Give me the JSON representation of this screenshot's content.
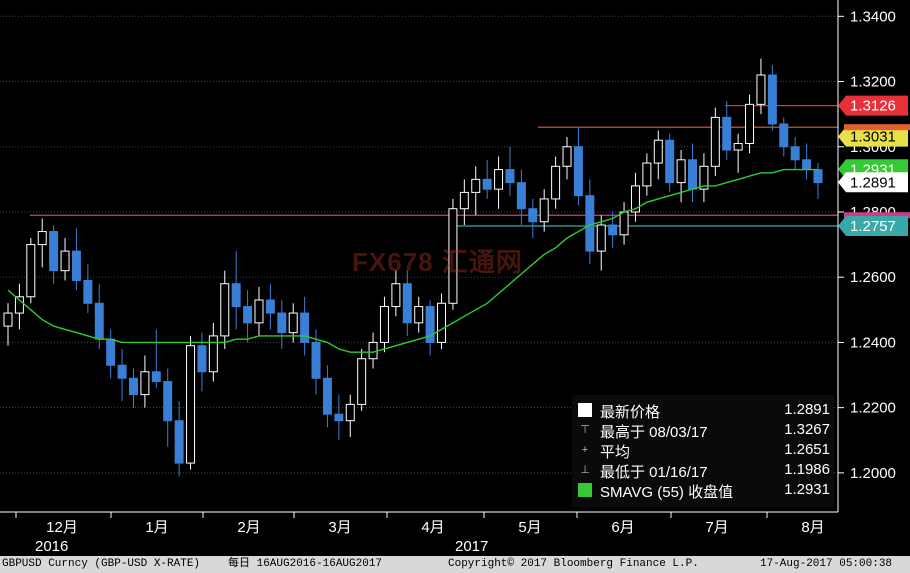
{
  "chart_data": {
    "type": "candlestick",
    "title": "",
    "ylim": [
      1.188,
      1.345
    ],
    "y_ticks": [
      "1.3400",
      "1.3200",
      "1.3000",
      "1.2800",
      "1.2600",
      "1.2400",
      "1.2200",
      "1.2000"
    ],
    "x_months": [
      "12月",
      "1月",
      "2月",
      "3月",
      "4月",
      "5月",
      "6月",
      "7月",
      "8月"
    ],
    "x_years": [
      "2016",
      "2017"
    ],
    "candles": [
      [
        1.245,
        1.252,
        1.239,
        1.249
      ],
      [
        1.249,
        1.258,
        1.244,
        1.254
      ],
      [
        1.254,
        1.272,
        1.252,
        1.27
      ],
      [
        1.27,
        1.278,
        1.263,
        1.274
      ],
      [
        1.274,
        1.276,
        1.258,
        1.262
      ],
      [
        1.262,
        1.272,
        1.259,
        1.268
      ],
      [
        1.268,
        1.275,
        1.256,
        1.259
      ],
      [
        1.259,
        1.264,
        1.249,
        1.252
      ],
      [
        1.252,
        1.258,
        1.238,
        1.241
      ],
      [
        1.241,
        1.244,
        1.229,
        1.233
      ],
      [
        1.233,
        1.238,
        1.222,
        1.229
      ],
      [
        1.229,
        1.232,
        1.22,
        1.224
      ],
      [
        1.224,
        1.236,
        1.22,
        1.231
      ],
      [
        1.231,
        1.244,
        1.226,
        1.228
      ],
      [
        1.228,
        1.232,
        1.208,
        1.216
      ],
      [
        1.216,
        1.222,
        1.199,
        1.203
      ],
      [
        1.203,
        1.242,
        1.201,
        1.239
      ],
      [
        1.239,
        1.243,
        1.225,
        1.231
      ],
      [
        1.231,
        1.246,
        1.228,
        1.242
      ],
      [
        1.242,
        1.262,
        1.238,
        1.258
      ],
      [
        1.258,
        1.268,
        1.244,
        1.251
      ],
      [
        1.251,
        1.256,
        1.24,
        1.246
      ],
      [
        1.246,
        1.257,
        1.242,
        1.253
      ],
      [
        1.253,
        1.258,
        1.244,
        1.249
      ],
      [
        1.249,
        1.253,
        1.238,
        1.243
      ],
      [
        1.243,
        1.252,
        1.24,
        1.249
      ],
      [
        1.249,
        1.254,
        1.236,
        1.24
      ],
      [
        1.24,
        1.244,
        1.224,
        1.229
      ],
      [
        1.229,
        1.233,
        1.214,
        1.218
      ],
      [
        1.218,
        1.224,
        1.21,
        1.216
      ],
      [
        1.216,
        1.224,
        1.211,
        1.221
      ],
      [
        1.221,
        1.238,
        1.219,
        1.235
      ],
      [
        1.235,
        1.243,
        1.232,
        1.24
      ],
      [
        1.24,
        1.254,
        1.237,
        1.251
      ],
      [
        1.251,
        1.262,
        1.248,
        1.258
      ],
      [
        1.258,
        1.262,
        1.242,
        1.246
      ],
      [
        1.246,
        1.254,
        1.243,
        1.251
      ],
      [
        1.251,
        1.253,
        1.236,
        1.24
      ],
      [
        1.24,
        1.255,
        1.238,
        1.252
      ],
      [
        1.252,
        1.284,
        1.25,
        1.281
      ],
      [
        1.281,
        1.29,
        1.276,
        1.286
      ],
      [
        1.286,
        1.294,
        1.279,
        1.29
      ],
      [
        1.29,
        1.296,
        1.284,
        1.287
      ],
      [
        1.287,
        1.297,
        1.281,
        1.293
      ],
      [
        1.293,
        1.3,
        1.285,
        1.289
      ],
      [
        1.289,
        1.293,
        1.276,
        1.281
      ],
      [
        1.281,
        1.284,
        1.272,
        1.277
      ],
      [
        1.277,
        1.287,
        1.274,
        1.284
      ],
      [
        1.284,
        1.297,
        1.281,
        1.294
      ],
      [
        1.294,
        1.303,
        1.29,
        1.3
      ],
      [
        1.3,
        1.306,
        1.282,
        1.285
      ],
      [
        1.285,
        1.29,
        1.264,
        1.268
      ],
      [
        1.268,
        1.279,
        1.262,
        1.276
      ],
      [
        1.276,
        1.28,
        1.269,
        1.273
      ],
      [
        1.273,
        1.283,
        1.27,
        1.28
      ],
      [
        1.28,
        1.292,
        1.277,
        1.288
      ],
      [
        1.288,
        1.298,
        1.285,
        1.295
      ],
      [
        1.295,
        1.305,
        1.29,
        1.302
      ],
      [
        1.302,
        1.304,
        1.286,
        1.289
      ],
      [
        1.289,
        1.299,
        1.283,
        1.296
      ],
      [
        1.296,
        1.301,
        1.283,
        1.287
      ],
      [
        1.287,
        1.298,
        1.283,
        1.294
      ],
      [
        1.294,
        1.312,
        1.291,
        1.309
      ],
      [
        1.309,
        1.314,
        1.296,
        1.299
      ],
      [
        1.299,
        1.304,
        1.292,
        1.301
      ],
      [
        1.301,
        1.316,
        1.298,
        1.313
      ],
      [
        1.313,
        1.327,
        1.31,
        1.322
      ],
      [
        1.322,
        1.325,
        1.305,
        1.307
      ],
      [
        1.307,
        1.309,
        1.297,
        1.3
      ],
      [
        1.3,
        1.303,
        1.293,
        1.296
      ],
      [
        1.296,
        1.301,
        1.29,
        1.293
      ],
      [
        1.293,
        1.295,
        1.284,
        1.289
      ]
    ],
    "moving_average": {
      "name": "SMAVG (55) 收盘值",
      "values": [
        1.256,
        1.253,
        1.25,
        1.247,
        1.245,
        1.244,
        1.243,
        1.242,
        1.241,
        1.241,
        1.24,
        1.24,
        1.24,
        1.24,
        1.24,
        1.24,
        1.24,
        1.24,
        1.24,
        1.24,
        1.241,
        1.241,
        1.242,
        1.242,
        1.242,
        1.242,
        1.242,
        1.241,
        1.24,
        1.238,
        1.237,
        1.237,
        1.237,
        1.238,
        1.239,
        1.24,
        1.241,
        1.242,
        1.244,
        1.246,
        1.248,
        1.25,
        1.252,
        1.255,
        1.258,
        1.261,
        1.264,
        1.267,
        1.269,
        1.272,
        1.274,
        1.276,
        1.277,
        1.278,
        1.28,
        1.281,
        1.283,
        1.284,
        1.285,
        1.286,
        1.287,
        1.288,
        1.288,
        1.289,
        1.29,
        1.291,
        1.292,
        1.292,
        1.293,
        1.293,
        1.293,
        1.293
      ],
      "color": "#2ecc2e"
    },
    "horizontal_lines": [
      {
        "value": 1.3126,
        "color": "#e8303a",
        "label": "1.3126"
      },
      {
        "value": 1.3031,
        "color": "#e8e04a",
        "label": "1.3031"
      },
      {
        "value": 1.306,
        "color": "#e06030",
        "label": ""
      },
      {
        "value": 1.2931,
        "color": "#35c935",
        "label": "1.2931"
      },
      {
        "value": 1.2891,
        "color": "#ffffff",
        "label": "1.2891"
      },
      {
        "value": 1.279,
        "color": "#d23a8c",
        "label": ""
      },
      {
        "value": 1.2757,
        "color": "#3aa8a8",
        "label": "1.2757"
      }
    ],
    "grid": true,
    "colors": {
      "up": "#ffffff",
      "down": "#3a7fd6",
      "grid": "#444444",
      "axis": "#ffffff"
    }
  },
  "legend": {
    "last_price_label": "最新价格",
    "last_price_value": "1.2891",
    "high_label": "最高于 08/03/17",
    "high_value": "1.3267",
    "avg_label": "平均",
    "avg_value": "1.2651",
    "low_label": "最低于 01/16/17",
    "low_value": "1.1986",
    "sma_label": "SMAVG (55) 收盘值",
    "sma_value": "1.2931"
  },
  "footer": {
    "ticker": "GBPUSD Curncy (GBP-USD X-RATE)",
    "period": "每日 16AUG2016-16AUG2017",
    "copyright": "Copyright© 2017 Bloomberg Finance L.P.",
    "timestamp": "17-Aug-2017 05:00:38"
  },
  "watermark": "FX678 汇通网"
}
